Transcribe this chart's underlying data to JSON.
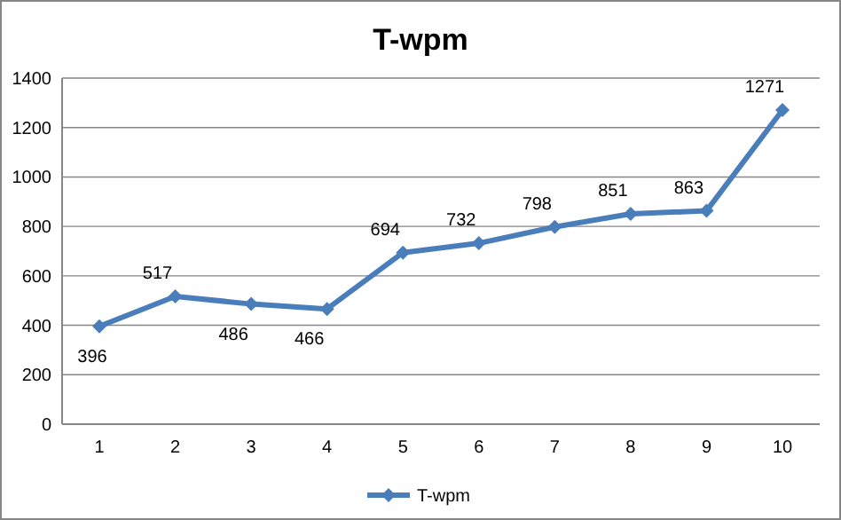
{
  "chart_data": {
    "type": "line",
    "title": "T-wpm",
    "categories": [
      "1",
      "2",
      "3",
      "4",
      "5",
      "6",
      "7",
      "8",
      "9",
      "10"
    ],
    "series": [
      {
        "name": "T-wpm",
        "color": "#4a7ebb",
        "values": [
          396,
          517,
          486,
          466,
          694,
          732,
          798,
          851,
          863,
          1271
        ]
      }
    ],
    "ylim": [
      0,
      1400
    ],
    "yticks": [
      0,
      200,
      400,
      600,
      800,
      1000,
      1200,
      1400
    ],
    "grid": "y",
    "legend": "bottom",
    "marker": "diamond",
    "line_style": "solid",
    "data_labels": true
  }
}
